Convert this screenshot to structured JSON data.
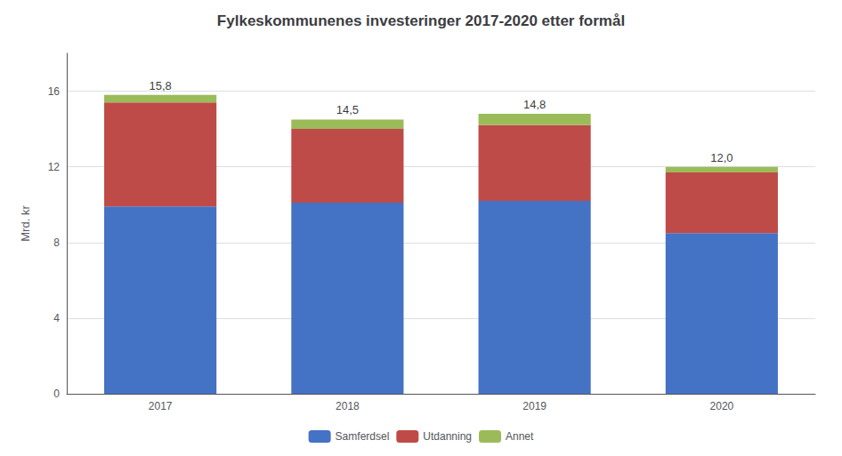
{
  "chart_data": {
    "type": "bar",
    "title": "Fylkeskommunenes investeringer 2017-2020 etter formål",
    "categories": [
      "2017",
      "2018",
      "2019",
      "2020"
    ],
    "stacked": true,
    "series": [
      {
        "name": "Samferdsel",
        "color": "#4472C4",
        "values": [
          9.9,
          10.1,
          10.2,
          8.5
        ]
      },
      {
        "name": "Utdanning",
        "color": "#BE4B48",
        "values": [
          5.5,
          3.9,
          4.0,
          3.2
        ]
      },
      {
        "name": "Annet",
        "color": "#9BBB59",
        "values": [
          0.4,
          0.5,
          0.6,
          0.3
        ]
      }
    ],
    "ylabel": "Mrd. kr",
    "ylim": [
      0,
      18
    ],
    "yticks": [
      0,
      4,
      8,
      12,
      16
    ],
    "grid": true,
    "legend": "bottom",
    "annotations": [
      {
        "category": "2017",
        "y": 15.8,
        "text": "15,8"
      },
      {
        "category": "2018",
        "y": 14.5,
        "text": "14,5"
      },
      {
        "category": "2019",
        "y": 14.8,
        "text": "14,8"
      },
      {
        "category": "2020",
        "y": 12.0,
        "text": "12,0"
      }
    ]
  }
}
